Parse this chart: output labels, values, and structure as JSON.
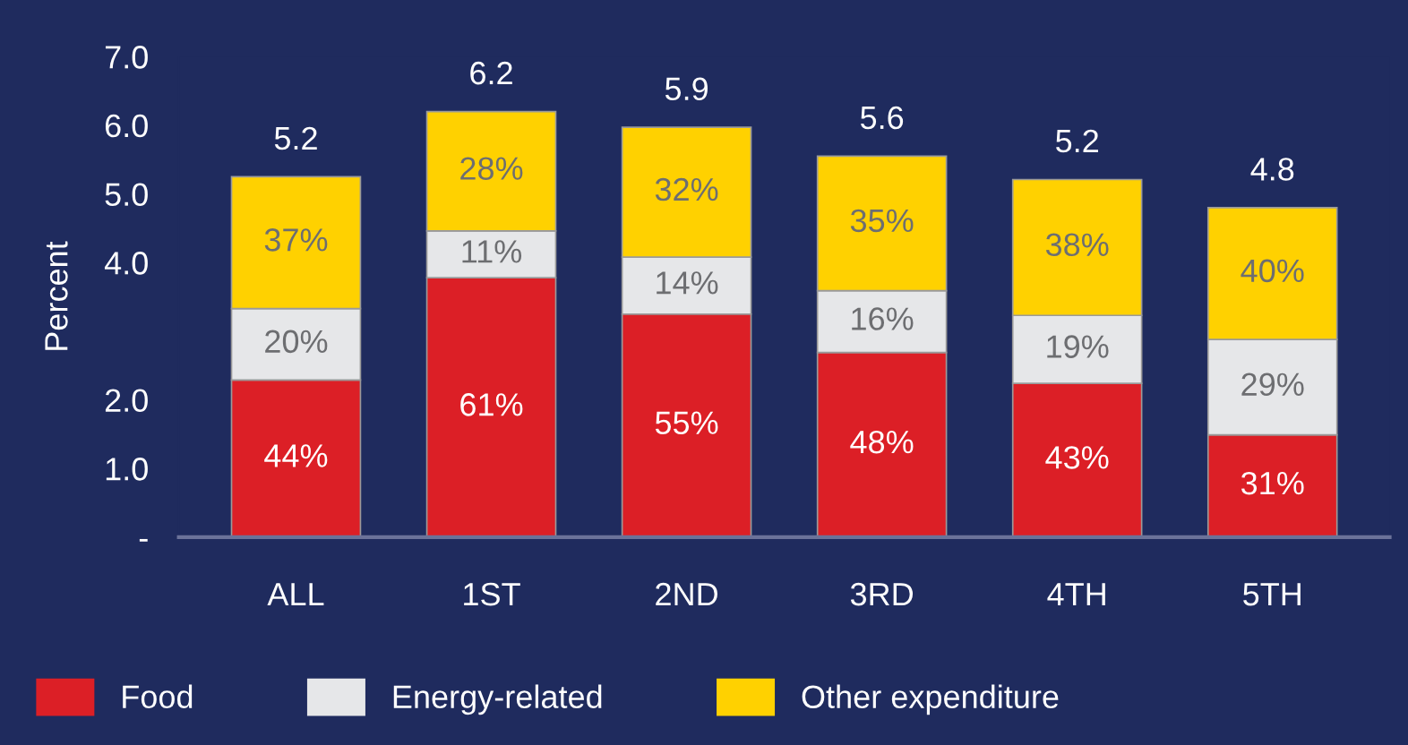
{
  "chart_data": {
    "type": "bar",
    "stacked": true,
    "ylabel": "Percent",
    "categories": [
      "ALL",
      "1ST",
      "2ND",
      "3RD",
      "4TH",
      "5TH"
    ],
    "series": [
      {
        "name": "Food",
        "color": "#dc1f26",
        "values": [
          2.29,
          3.78,
          3.25,
          2.69,
          2.24,
          1.49
        ]
      },
      {
        "name": "Energy-related",
        "color": "#e6e7e9",
        "values": [
          1.04,
          0.68,
          0.83,
          0.9,
          0.99,
          1.39
        ]
      },
      {
        "name": "Other expenditure",
        "color": "#ffd100",
        "values": [
          1.92,
          1.74,
          1.89,
          1.96,
          1.98,
          1.92
        ]
      }
    ],
    "annotations": [
      "44%",
      "61%",
      "55%",
      "48%",
      "43%",
      "31%",
      "20%",
      "11%",
      "14%",
      "16%",
      "19%",
      "29%",
      "37%",
      "28%",
      "32%",
      "35%",
      "38%",
      "40%"
    ],
    "totals": [
      "5.2",
      "6.2",
      "5.9",
      "5.6",
      "5.2",
      "4.8"
    ],
    "ylim": [
      0,
      7
    ],
    "yticks": [
      {
        "value": 0,
        "label": "-"
      },
      {
        "value": 1,
        "label": "1.0"
      },
      {
        "value": 2,
        "label": "2.0"
      },
      {
        "value": 4,
        "label": "4.0"
      },
      {
        "value": 5,
        "label": "5.0"
      },
      {
        "value": 6,
        "label": "6.0"
      },
      {
        "value": 7,
        "label": "7.0"
      }
    ],
    "grid": false,
    "legend": "bottom left"
  }
}
